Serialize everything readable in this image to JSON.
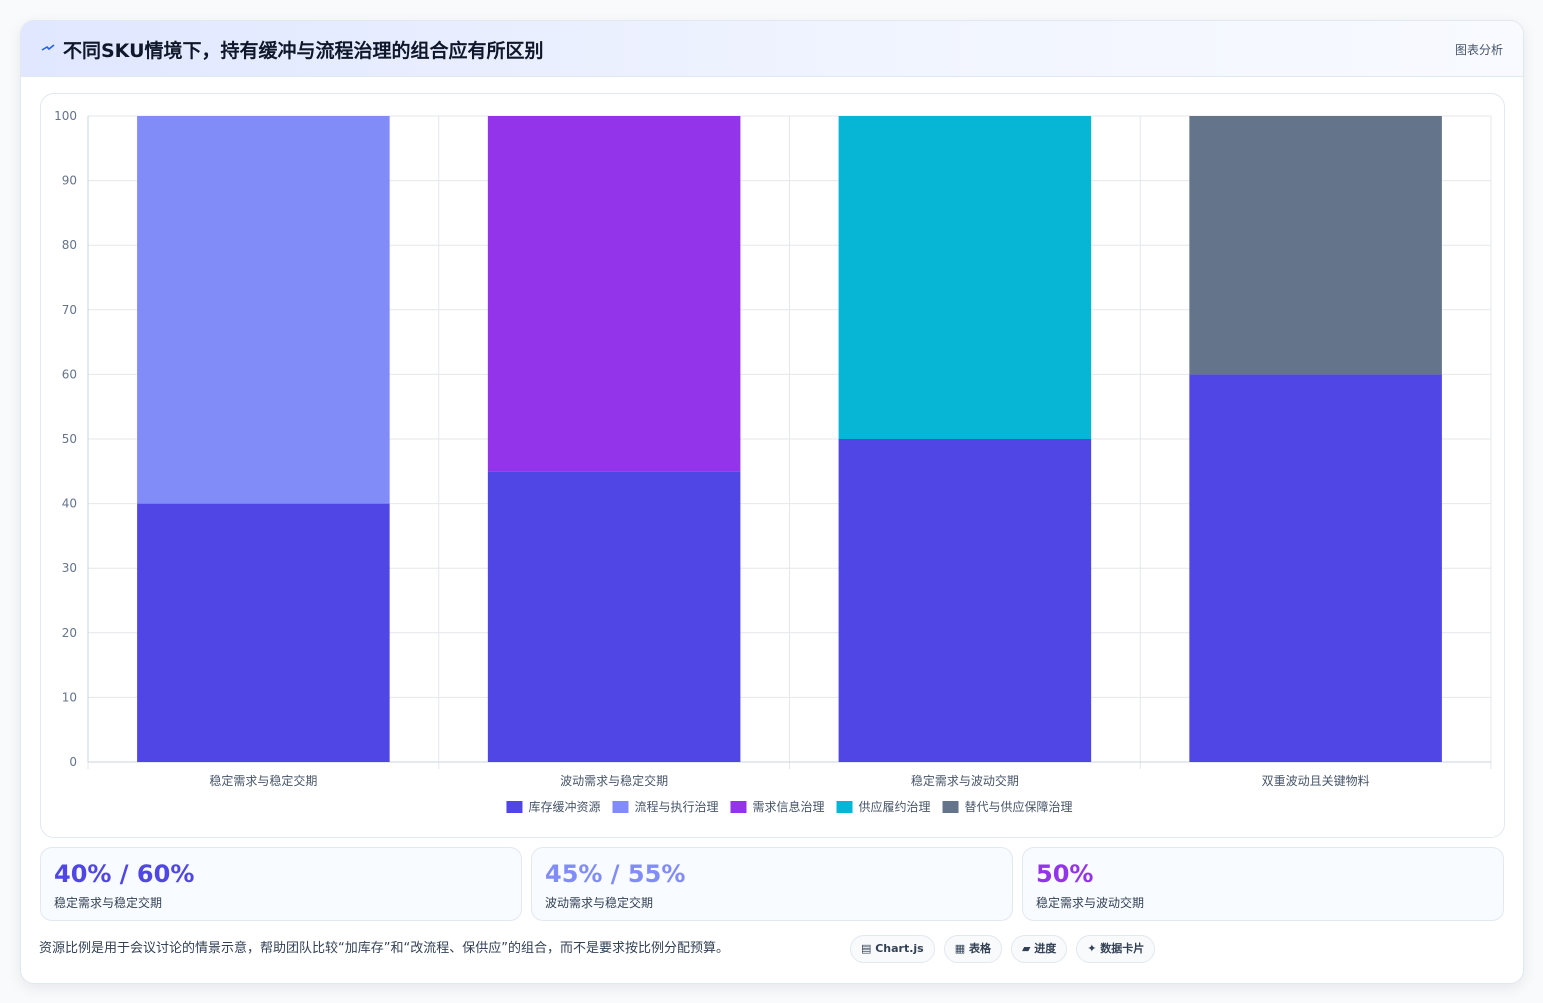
{
  "header": {
    "title": "不同SKU情境下，持有缓冲与流程治理的组合应有所区别",
    "tag": "图表分析"
  },
  "chart_data": {
    "type": "stacked-bar",
    "categories": [
      "稳定需求与稳定交期",
      "波动需求与稳定交期",
      "稳定需求与波动交期",
      "双重波动且关键物料"
    ],
    "series": [
      {
        "name": "库存缓冲资源",
        "color": "#4f46e5",
        "values": [
          40,
          45,
          50,
          60
        ]
      },
      {
        "name": "流程与执行治理",
        "color": "#818cf8",
        "values": [
          60,
          0,
          0,
          0
        ]
      },
      {
        "name": "需求信息治理",
        "color": "#9333ea",
        "values": [
          0,
          55,
          0,
          0
        ]
      },
      {
        "name": "供应履约治理",
        "color": "#06b6d4",
        "values": [
          0,
          0,
          50,
          0
        ]
      },
      {
        "name": "替代与供应保障治理",
        "color": "#64748b",
        "values": [
          0,
          0,
          0,
          40
        ]
      }
    ],
    "ylim": [
      0,
      100
    ],
    "yticks": [
      0,
      10,
      20,
      30,
      40,
      50,
      60,
      70,
      80,
      90,
      100
    ],
    "grid": true
  },
  "cards": [
    {
      "value": "40% / 60%",
      "label": "稳定需求与稳定交期",
      "color": "#4f46e5"
    },
    {
      "value": "45% / 55%",
      "label": "波动需求与稳定交期",
      "color": "#818cf8"
    },
    {
      "value": "50%",
      "label": "稳定需求与波动交期",
      "color": "#9333ea"
    }
  ],
  "footnote": "资源比例是用于会议讨论的情景示意，帮助团队比较“加库存”和“改流程、保供应”的组合，而不是要求按比例分配预算。",
  "buttons": [
    "▤ Chart.js",
    "▦ 表格",
    "▰ 进度",
    "✦ 数据卡片"
  ]
}
